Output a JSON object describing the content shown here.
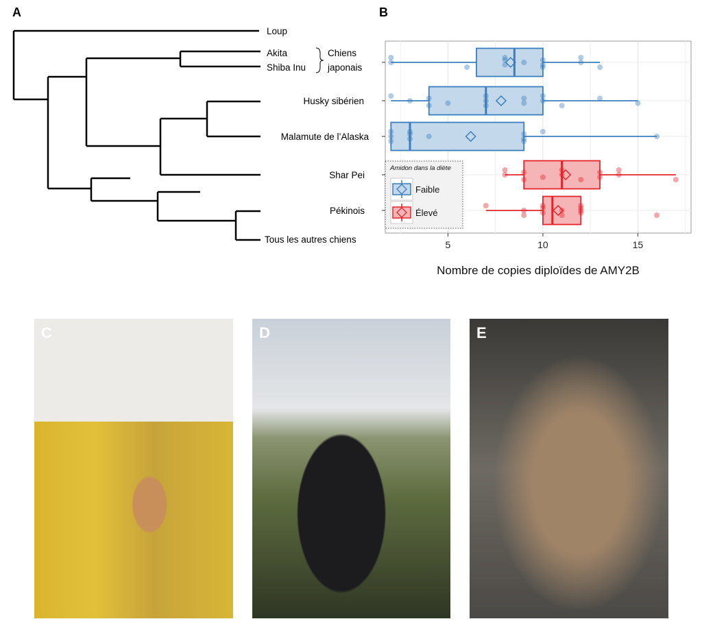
{
  "panels": {
    "a": "A",
    "b": "B",
    "c": "C",
    "d": "D",
    "e": "E"
  },
  "tree": {
    "leaves": [
      "Loup",
      "Akita",
      "Shiba Inu",
      "Husky sibérien",
      "Malamute de l’Alaska",
      "Shar Pei",
      "Pékinois",
      "Tous les autres chiens"
    ],
    "group_label": [
      "Chiens",
      "japonais"
    ]
  },
  "chart_data": {
    "type": "boxplot",
    "orientation": "horizontal",
    "xlabel": "Nombre de copies diploïdes de AMY2B",
    "xlim": [
      1.7,
      17.8
    ],
    "xticks": [
      5,
      10,
      15
    ],
    "grid": true,
    "categories": [
      "Chiens japonais",
      "Husky sibérien",
      "Malamute de l’Alaska",
      "Shar Pei",
      "Pékinois"
    ],
    "legend": {
      "title": "Amidon dans la diète",
      "entries": [
        "Faible",
        "Élevé"
      ],
      "placement": "bottom-left"
    },
    "colors": {
      "Faible": "#3a7ebf",
      "Élevé": "#e4242a"
    },
    "boxes": [
      {
        "group": "Faible",
        "whisker_low": 2,
        "q1": 6.5,
        "median": 8.5,
        "q3": 10,
        "whisker_high": 13,
        "mean": 8.3,
        "points": [
          2,
          2,
          6,
          8,
          8,
          8,
          9,
          10,
          10,
          10,
          12,
          12,
          13
        ]
      },
      {
        "group": "Faible",
        "whisker_low": 2,
        "q1": 4,
        "median": 7,
        "q3": 10,
        "whisker_high": 15,
        "mean": 7.8,
        "points": [
          2,
          3,
          4,
          4,
          5,
          7,
          7,
          7,
          9,
          9,
          10,
          10,
          11,
          13,
          15
        ]
      },
      {
        "group": "Faible",
        "whisker_low": 2,
        "q1": 2,
        "median": 3,
        "q3": 9,
        "whisker_high": 16,
        "mean": 6.2,
        "points": [
          2,
          2,
          2,
          3,
          3,
          3,
          4,
          9,
          9,
          9,
          10,
          16
        ]
      },
      {
        "group": "Élevé",
        "whisker_low": 8,
        "q1": 9,
        "median": 11,
        "q3": 13,
        "whisker_high": 17,
        "mean": 11.2,
        "points": [
          8,
          8,
          9,
          9,
          10,
          11,
          11,
          12,
          13,
          13,
          14,
          14,
          17
        ]
      },
      {
        "group": "Élevé",
        "whisker_low": 7,
        "q1": 10,
        "median": 10.5,
        "q3": 12,
        "whisker_high": 12,
        "mean": 10.8,
        "points": [
          7,
          9,
          9,
          10,
          10,
          10,
          11,
          11,
          12,
          12,
          12,
          12,
          16
        ]
      }
    ]
  }
}
